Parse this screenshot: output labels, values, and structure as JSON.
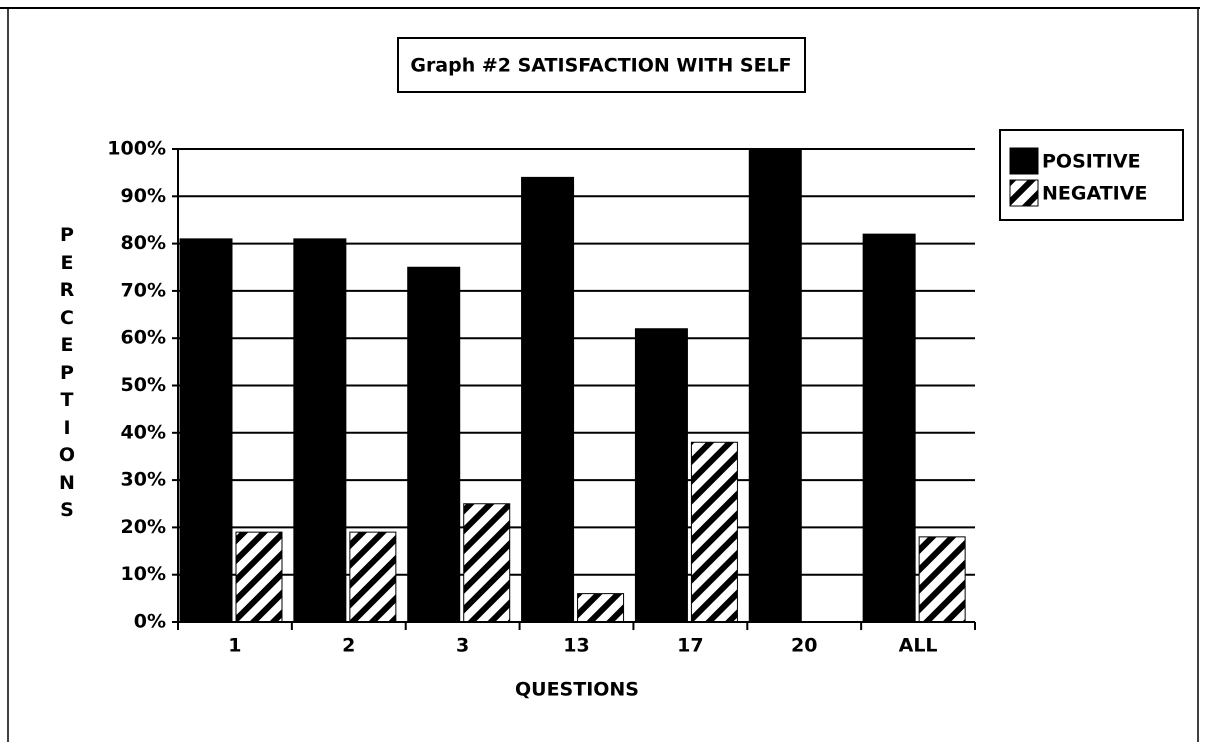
{
  "chart_data": {
    "type": "bar",
    "title": "Graph #2  SATISFACTION WITH SELF",
    "x_label": "QUESTIONS",
    "y_label": "PERCEPTIONS",
    "categories": [
      "1",
      "2",
      "3",
      "13",
      "17",
      "20",
      "ALL"
    ],
    "series": [
      {
        "name": "POSITIVE",
        "color": "#000000",
        "hatch": false,
        "values": [
          81,
          81,
          75,
          94,
          62,
          100,
          82
        ]
      },
      {
        "name": "NEGATIVE",
        "color": "#000000",
        "hatch": true,
        "values": [
          19,
          19,
          25,
          6,
          38,
          0,
          18
        ]
      }
    ],
    "ylim": [
      0,
      100
    ],
    "yticks": [
      {
        "value": 0,
        "label": "0%"
      },
      {
        "value": 10,
        "label": "10%"
      },
      {
        "value": 20,
        "label": "20%"
      },
      {
        "value": 30,
        "label": "30%"
      },
      {
        "value": 40,
        "label": "40%"
      },
      {
        "value": 50,
        "label": "50%"
      },
      {
        "value": 60,
        "label": "60%"
      },
      {
        "value": 70,
        "label": "70%"
      },
      {
        "value": 80,
        "label": "80%"
      },
      {
        "value": 90,
        "label": "90%"
      },
      {
        "value": 100,
        "label": "100%"
      }
    ],
    "grid": true,
    "legend": "right"
  }
}
